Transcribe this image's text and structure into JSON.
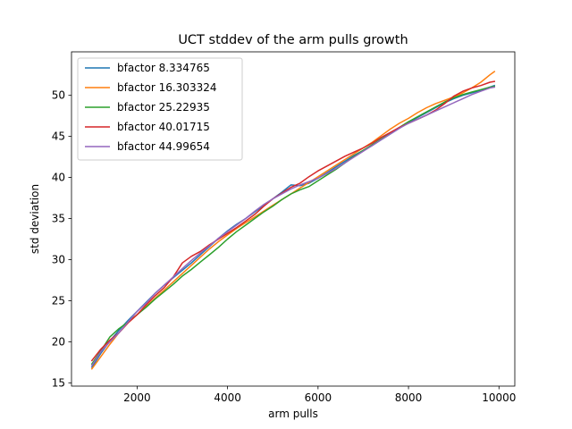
{
  "chart_data": {
    "type": "line",
    "title": "UCT stddev of the arm pulls growth",
    "xlabel": "arm pulls",
    "ylabel": "std deviation",
    "xlim": [
      550,
      10350
    ],
    "ylim": [
      14.6,
      55.3
    ],
    "xticks": [
      2000,
      4000,
      6000,
      8000,
      10000
    ],
    "yticks": [
      15,
      20,
      25,
      30,
      35,
      40,
      45,
      50
    ],
    "grid": false,
    "legend_position": "top-left",
    "x": [
      1000,
      1200,
      1400,
      1600,
      1800,
      2000,
      2200,
      2400,
      2600,
      2800,
      3000,
      3200,
      3400,
      3600,
      3800,
      4000,
      4200,
      4400,
      4600,
      4800,
      5000,
      5200,
      5400,
      5600,
      5800,
      6000,
      6200,
      6400,
      6600,
      6800,
      7000,
      7200,
      7400,
      7600,
      7800,
      8000,
      8200,
      8400,
      8600,
      8800,
      9000,
      9200,
      9400,
      9600,
      9800,
      9900
    ],
    "series": [
      {
        "name": "bfactor 8.334765",
        "color": "#1f77b4",
        "values": [
          16.9,
          18.6,
          20.1,
          21.4,
          22.6,
          23.7,
          24.8,
          25.9,
          26.9,
          27.8,
          28.7,
          29.6,
          30.6,
          31.6,
          32.6,
          33.5,
          34.3,
          35.0,
          35.8,
          36.6,
          37.4,
          38.2,
          39.1,
          39.0,
          39.3,
          39.9,
          40.6,
          41.3,
          42.0,
          42.7,
          43.3,
          43.9,
          44.6,
          45.3,
          46.0,
          46.7,
          47.3,
          47.9,
          48.5,
          49.1,
          49.6,
          50.0,
          50.3,
          50.6,
          51.0,
          51.2
        ]
      },
      {
        "name": "bfactor 16.303324",
        "color": "#ff7f0e",
        "values": [
          16.7,
          18.2,
          19.7,
          21.1,
          22.3,
          23.3,
          24.3,
          25.3,
          26.3,
          27.3,
          28.3,
          29.3,
          30.3,
          31.3,
          32.2,
          33.0,
          33.8,
          34.5,
          35.2,
          35.9,
          36.6,
          37.3,
          38.0,
          38.7,
          39.4,
          40.1,
          40.8,
          41.5,
          42.2,
          42.9,
          43.6,
          44.3,
          45.1,
          45.9,
          46.6,
          47.2,
          47.9,
          48.5,
          49.0,
          49.4,
          49.8,
          50.3,
          50.9,
          51.6,
          52.5,
          52.9
        ]
      },
      {
        "name": "bfactor 25.22935",
        "color": "#2ca02c",
        "values": [
          17.3,
          18.9,
          20.6,
          21.6,
          22.4,
          23.3,
          24.2,
          25.2,
          26.1,
          27.0,
          28.0,
          28.8,
          29.7,
          30.6,
          31.5,
          32.5,
          33.4,
          34.2,
          35.0,
          35.8,
          36.5,
          37.3,
          38.0,
          38.5,
          38.9,
          39.6,
          40.3,
          41.0,
          41.8,
          42.6,
          43.3,
          44.0,
          44.7,
          45.4,
          46.1,
          46.8,
          47.4,
          48.0,
          48.6,
          49.2,
          49.7,
          50.1,
          50.4,
          50.7,
          51.0,
          51.1
        ]
      },
      {
        "name": "bfactor 40.01715",
        "color": "#d62728",
        "values": [
          17.7,
          19.1,
          20.2,
          21.1,
          22.3,
          23.3,
          24.5,
          25.6,
          26.6,
          27.9,
          29.6,
          30.4,
          31.0,
          31.8,
          32.5,
          33.2,
          33.9,
          34.7,
          35.5,
          36.5,
          37.4,
          38.1,
          38.8,
          39.3,
          40.1,
          40.8,
          41.4,
          42.0,
          42.6,
          43.1,
          43.6,
          44.2,
          44.9,
          45.5,
          46.1,
          46.6,
          47.1,
          47.6,
          48.2,
          49.0,
          49.9,
          50.5,
          50.9,
          51.2,
          51.6,
          51.7
        ]
      },
      {
        "name": "bfactor 44.99654",
        "color": "#9467bd",
        "values": [
          17.1,
          18.8,
          20.0,
          21.1,
          22.4,
          23.7,
          24.7,
          25.9,
          26.9,
          27.9,
          28.9,
          29.9,
          30.8,
          31.7,
          32.6,
          33.4,
          34.2,
          35.0,
          35.9,
          36.7,
          37.4,
          38.0,
          38.6,
          39.1,
          39.5,
          39.9,
          40.5,
          41.1,
          41.8,
          42.5,
          43.2,
          43.9,
          44.6,
          45.3,
          46.0,
          46.6,
          47.1,
          47.6,
          48.1,
          48.6,
          49.1,
          49.6,
          50.1,
          50.5,
          50.9,
          51.0
        ]
      }
    ]
  }
}
